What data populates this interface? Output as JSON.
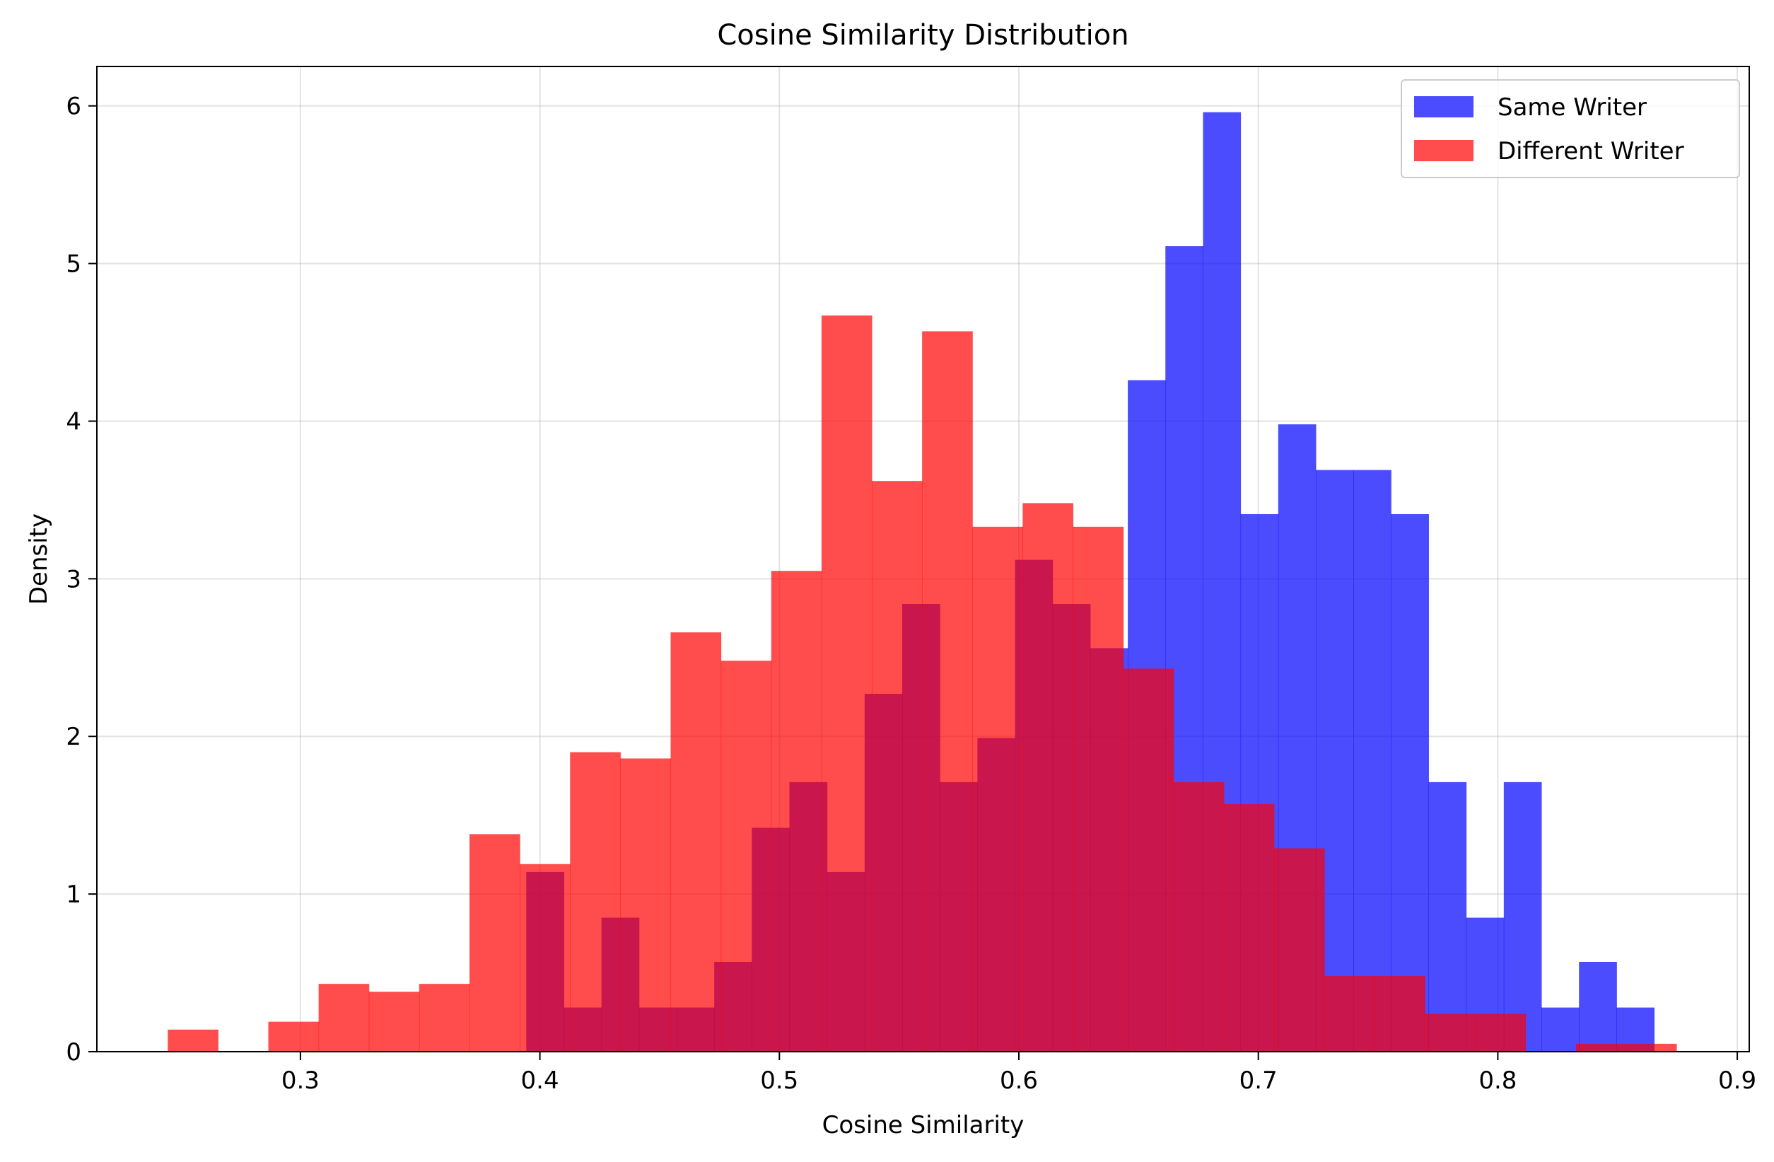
{
  "chart_data": {
    "type": "bar",
    "title": "Cosine Similarity Distribution",
    "xlabel": "Cosine Similarity",
    "ylabel": "Density",
    "xlim": [
      0.215,
      0.905
    ],
    "ylim": [
      0,
      6.25
    ],
    "xticks": [
      0.3,
      0.4,
      0.5,
      0.6,
      0.7,
      0.8,
      0.9
    ],
    "xtick_labels": [
      "0.3",
      "0.4",
      "0.5",
      "0.6",
      "0.7",
      "0.8",
      "0.9"
    ],
    "yticks": [
      0,
      1,
      2,
      3,
      4,
      5,
      6
    ],
    "ytick_labels": [
      "0",
      "1",
      "2",
      "3",
      "4",
      "5",
      "6"
    ],
    "grid": true,
    "legend_position": "top-right",
    "series": [
      {
        "name": "Same Writer",
        "color": "#0000ff",
        "opacity": 0.7,
        "bin_edges": [
          0.3943,
          0.41,
          0.4257,
          0.4414,
          0.4571,
          0.4728,
          0.4885,
          0.5042,
          0.5199,
          0.5356,
          0.5513,
          0.567,
          0.5827,
          0.5984,
          0.6141,
          0.6298,
          0.6455,
          0.6612,
          0.6769,
          0.6926,
          0.7083,
          0.724,
          0.7397,
          0.7554,
          0.7711,
          0.7868,
          0.8025,
          0.8182,
          0.8339,
          0.8496,
          0.8653
        ],
        "values": [
          1.14,
          0.28,
          0.85,
          0.28,
          0.28,
          0.57,
          1.42,
          1.71,
          1.14,
          2.27,
          2.84,
          1.71,
          1.99,
          3.12,
          2.84,
          2.56,
          4.26,
          5.11,
          5.96,
          3.41,
          3.98,
          3.69,
          3.69,
          3.41,
          1.71,
          0.85,
          1.71,
          0.28,
          0.57,
          0.28
        ]
      },
      {
        "name": "Different Writer",
        "color": "#ff0000",
        "opacity": 0.7,
        "bin_edges": [
          0.2446,
          0.2656,
          0.2866,
          0.3076,
          0.3286,
          0.3496,
          0.3706,
          0.3916,
          0.4126,
          0.4336,
          0.4546,
          0.4756,
          0.4966,
          0.5176,
          0.5386,
          0.5596,
          0.5806,
          0.6016,
          0.6226,
          0.6436,
          0.6646,
          0.6856,
          0.7066,
          0.7276,
          0.7486,
          0.7696,
          0.7906,
          0.8116,
          0.8326,
          0.8536,
          0.8746
        ],
        "values": [
          0.14,
          0.0,
          0.19,
          0.43,
          0.38,
          0.43,
          1.38,
          1.19,
          1.9,
          1.86,
          2.66,
          2.48,
          3.05,
          4.67,
          3.62,
          4.57,
          3.33,
          3.48,
          3.33,
          2.43,
          1.71,
          1.57,
          1.29,
          0.48,
          0.48,
          0.24,
          0.24,
          0.0,
          0.05,
          0.05
        ]
      }
    ]
  }
}
